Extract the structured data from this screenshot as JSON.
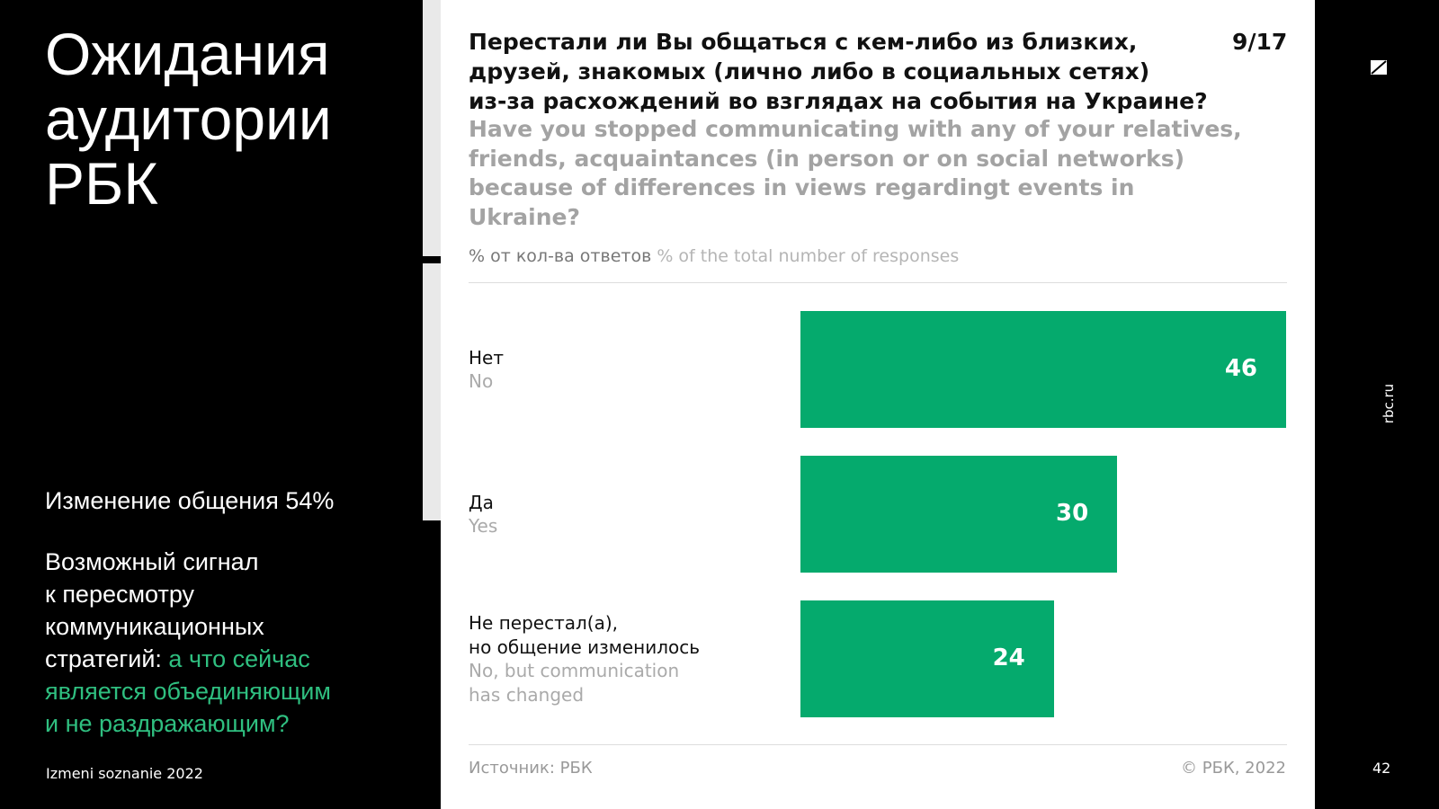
{
  "slide": {
    "title_lines": [
      "Ожидания",
      "аудитории",
      "РБК"
    ],
    "highlight": "Изменение общения 54%",
    "body_lines": [
      "Возможный сигнал",
      "к пересмотру",
      "коммуникационных",
      "стратегий:"
    ],
    "body_accent_lines": [
      "а что сейчас",
      "является объединяющим",
      "и не раздражающим?"
    ],
    "footer": "Izmeni soznanie 2022",
    "site": "rbc.ru",
    "page_number": 42
  },
  "chart_data": {
    "type": "bar",
    "orientation": "horizontal",
    "title_lines": [
      "Перестали ли Вы общаться с кем-либо из близких,",
      "друзей, знакомых (лично либо в социальных сетях)",
      "из-за расхождений во взглядах на события на Украине?"
    ],
    "title_en_lines": [
      "Have you stopped communicating with any of your relatives,",
      "friends, acquaintances (in person or on social networks)",
      "because of differences in views regardingt events in",
      "Ukraine?"
    ],
    "page": "9/17",
    "unit_label": "% от кол-ва ответов",
    "unit_label_en": "% of the total number of responses",
    "categories": [
      [
        "Нет"
      ],
      [
        "Да"
      ],
      [
        "Не перестал(а),",
        "но общение изменилось"
      ]
    ],
    "categories_en": [
      [
        "No"
      ],
      [
        "Yes"
      ],
      [
        "No, but communication",
        "has changed"
      ]
    ],
    "values": [
      46,
      30,
      24
    ],
    "color": "#05aa6d",
    "source": "Источник: РБК",
    "copyright": "© РБК, 2022"
  }
}
